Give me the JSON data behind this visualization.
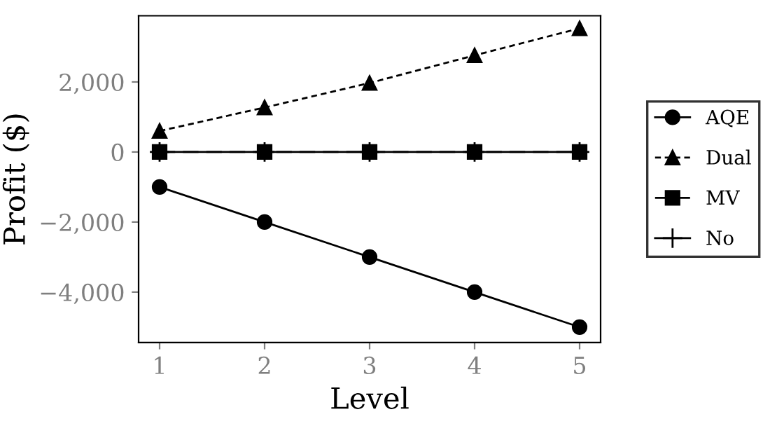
{
  "chart_data": {
    "type": "line",
    "xlabel": "Level",
    "ylabel": "Profit ($)",
    "x": [
      1,
      2,
      3,
      4,
      5
    ],
    "series": [
      {
        "name": "AQE",
        "color": "#000000",
        "marker": "circle",
        "line_style": "solid",
        "values": [
          -1000,
          -2000,
          -3000,
          -4000,
          -5000
        ]
      },
      {
        "name": "Dual",
        "color": "#000000",
        "marker": "triangle",
        "line_style": "dotted",
        "values": [
          600,
          1270,
          1970,
          2760,
          3530
        ]
      },
      {
        "name": "MV",
        "color": "#000000",
        "marker": "square",
        "line_style": "dashed",
        "values": [
          0,
          0,
          0,
          0,
          0
        ]
      },
      {
        "name": "No",
        "color": "#000000",
        "marker": "cross",
        "line_style": "solid",
        "values": [
          0,
          0,
          0,
          0,
          0
        ]
      }
    ],
    "xlim": [
      0.8,
      5.2
    ],
    "ylim": [
      -5440,
      3890
    ],
    "xticks": [
      1,
      2,
      3,
      4,
      5
    ],
    "yticks": [
      {
        "value": -4000,
        "label": "−4,000"
      },
      {
        "value": -2000,
        "label": "−2,000"
      },
      0,
      {
        "value": 2000,
        "label": "2,000"
      }
    ],
    "grid": false,
    "legend": "right"
  }
}
